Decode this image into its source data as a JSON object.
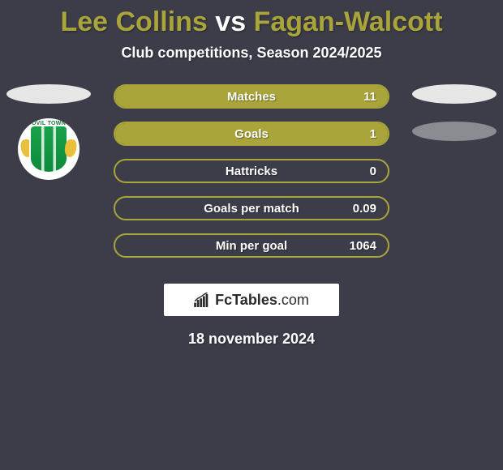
{
  "title": {
    "player1": "Lee Collins",
    "vs": "vs",
    "player2": "Fagan-Walcott",
    "player1_color": "#a9a53a",
    "player2_color": "#a9a53a"
  },
  "subtitle": "Club competitions, Season 2024/2025",
  "accent_color": "#a9a53a",
  "badge_text": "OVIL TOWN",
  "stats": [
    {
      "label": "Matches",
      "value": "11",
      "fill_pct": 100
    },
    {
      "label": "Goals",
      "value": "1",
      "fill_pct": 100
    },
    {
      "label": "Hattricks",
      "value": "0",
      "fill_pct": 0
    },
    {
      "label": "Goals per match",
      "value": "0.09",
      "fill_pct": 0
    },
    {
      "label": "Min per goal",
      "value": "1064",
      "fill_pct": 0
    }
  ],
  "brand": "FcTables.com",
  "date": "18 november 2024",
  "colors": {
    "background": "#3d3d4a",
    "text": "#ffffff",
    "ellipse_light": "#e6e6e6",
    "ellipse_dark": "#8b8b92"
  }
}
